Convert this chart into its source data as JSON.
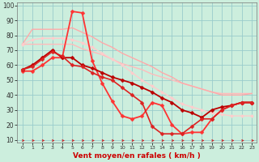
{
  "xlabel": "Vent moyen/en rafales ( km/h )",
  "bg_color": "#cceedd",
  "grid_color": "#99cccc",
  "xlim": [
    -0.5,
    23.5
  ],
  "ylim": [
    8,
    102
  ],
  "yticks": [
    10,
    20,
    30,
    40,
    50,
    60,
    70,
    80,
    90,
    100
  ],
  "xticks": [
    0,
    1,
    2,
    3,
    4,
    5,
    6,
    7,
    8,
    9,
    10,
    11,
    12,
    13,
    14,
    15,
    16,
    17,
    18,
    19,
    20,
    21,
    22,
    23
  ],
  "lines": [
    {
      "x": [
        0,
        1,
        2,
        3,
        4,
        5,
        6,
        7,
        8,
        9,
        10,
        11,
        12,
        13,
        14,
        15,
        16,
        17,
        18,
        19,
        20,
        21,
        22,
        23
      ],
      "y": [
        74,
        74,
        74,
        74,
        74,
        74,
        71,
        69,
        67,
        64,
        61,
        59,
        57,
        54,
        52,
        50,
        48,
        46,
        44,
        42,
        41,
        41,
        41,
        41
      ],
      "color": "#ffbbbb",
      "lw": 1.0,
      "marker": null,
      "ms": 0
    },
    {
      "x": [
        0,
        1,
        2,
        3,
        4,
        5,
        6,
        7,
        8,
        9,
        10,
        11,
        12,
        13,
        14,
        15,
        16,
        17,
        18,
        19,
        20,
        21,
        22,
        23
      ],
      "y": [
        74,
        84,
        84,
        84,
        84,
        85,
        82,
        79,
        75,
        72,
        68,
        65,
        62,
        59,
        55,
        52,
        48,
        46,
        44,
        42,
        40,
        40,
        40,
        41
      ],
      "color": "#ffaaaa",
      "lw": 1.0,
      "marker": null,
      "ms": 0
    },
    {
      "x": [
        0,
        1,
        2,
        3,
        4,
        5,
        6,
        7,
        8,
        9,
        10,
        11,
        12,
        13,
        14,
        15,
        16,
        17,
        18,
        19,
        20,
        21,
        22,
        23
      ],
      "y": [
        74,
        77,
        78,
        78,
        78,
        77,
        75,
        72,
        68,
        64,
        60,
        55,
        50,
        46,
        42,
        38,
        34,
        32,
        30,
        28,
        27,
        26,
        26,
        26
      ],
      "color": "#ffcccc",
      "lw": 1.0,
      "marker": "D",
      "ms": 2.0
    },
    {
      "x": [
        0,
        1,
        2,
        3,
        4,
        5,
        6,
        7,
        8,
        9,
        10,
        11,
        12,
        13,
        14,
        15,
        16,
        17,
        18,
        19,
        20,
        21,
        22,
        23
      ],
      "y": [
        56,
        56,
        60,
        65,
        65,
        96,
        95,
        63,
        48,
        36,
        26,
        24,
        26,
        35,
        33,
        20,
        14,
        15,
        15,
        24,
        30,
        33,
        35,
        35
      ],
      "color": "#ff3333",
      "lw": 1.3,
      "marker": "D",
      "ms": 2.5
    },
    {
      "x": [
        0,
        1,
        2,
        3,
        4,
        5,
        6,
        7,
        8,
        9,
        10,
        11,
        12,
        13,
        14,
        15,
        16,
        17,
        18,
        19,
        20,
        21,
        22,
        23
      ],
      "y": [
        57,
        60,
        65,
        70,
        65,
        65,
        60,
        58,
        55,
        52,
        50,
        48,
        45,
        42,
        38,
        35,
        30,
        28,
        25,
        30,
        32,
        33,
        35,
        35
      ],
      "color": "#bb0000",
      "lw": 1.3,
      "marker": "D",
      "ms": 2.5
    },
    {
      "x": [
        0,
        1,
        2,
        3,
        4,
        5,
        6,
        7,
        8,
        9,
        10,
        11,
        12,
        13,
        14,
        15,
        16,
        17,
        18,
        19,
        20,
        21,
        22,
        23
      ],
      "y": [
        57,
        59,
        64,
        69,
        66,
        60,
        59,
        55,
        52,
        50,
        45,
        40,
        35,
        19,
        14,
        14,
        14,
        19,
        24,
        24,
        30,
        33,
        35,
        35
      ],
      "color": "#dd2222",
      "lw": 1.2,
      "marker": "D",
      "ms": 2.5
    }
  ],
  "arrow_color": "#cc2222",
  "xlabel_color": "#cc0000",
  "xlabel_fontsize": 6.5
}
